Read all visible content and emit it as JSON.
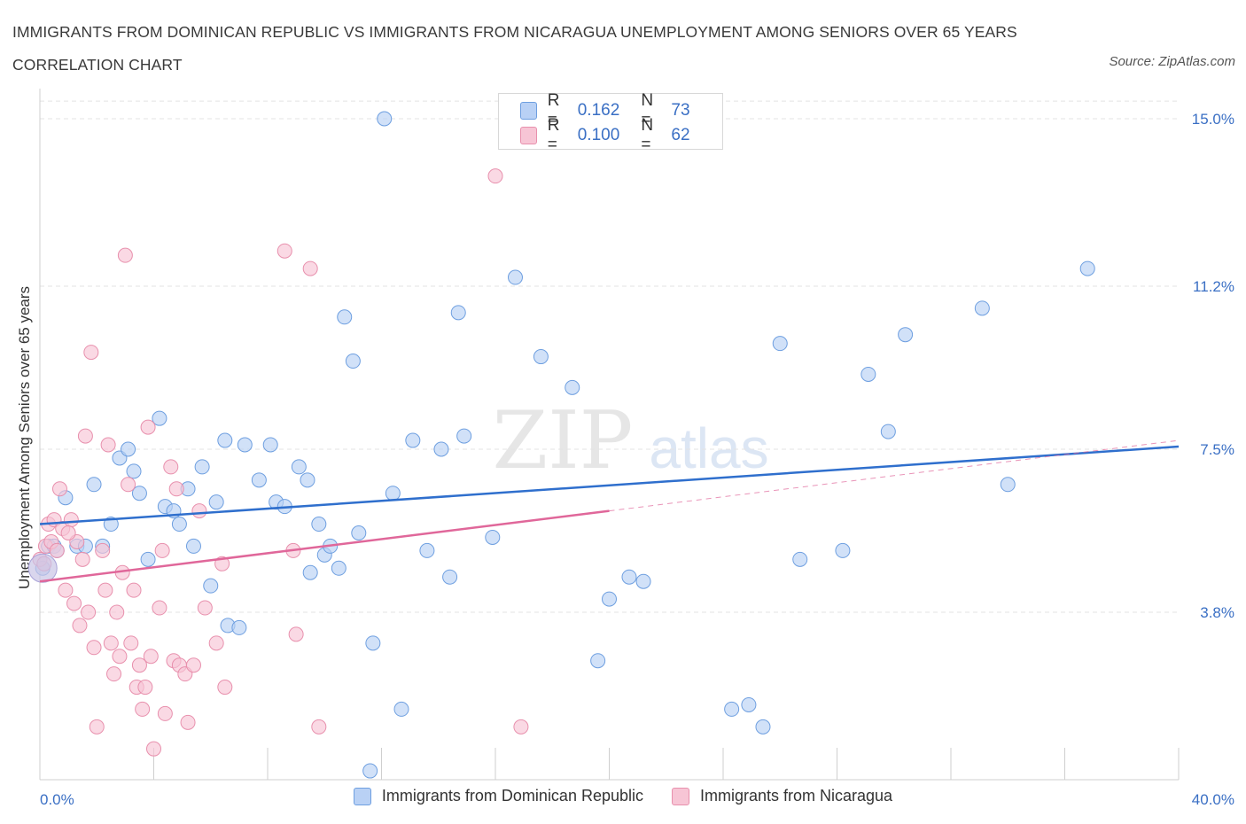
{
  "title": "IMMIGRANTS FROM DOMINICAN REPUBLIC VS IMMIGRANTS FROM NICARAGUA UNEMPLOYMENT AMONG SENIORS OVER 65 YEARS CORRELATION CHART",
  "source": "Source: ZipAtlas.com",
  "watermark": {
    "zip": "ZIP",
    "atlas": "atlas"
  },
  "legend_top": [
    {
      "r_label": "R =",
      "r_value": "0.162",
      "n_label": "N =",
      "n_value": "73"
    },
    {
      "r_label": "R =",
      "r_value": "0.100",
      "n_label": "N =",
      "n_value": "62"
    }
  ],
  "colors": {
    "blue_fill": "#b9d1f5",
    "blue_stroke": "#6e9fe0",
    "blue_line": "#2f6fcd",
    "pink_fill": "#f7c5d5",
    "pink_stroke": "#e890ad",
    "pink_line": "#e0679a",
    "grid": "#e3e3e3",
    "tick_label": "#3a6fc4"
  },
  "chart_data": {
    "type": "scatter",
    "title": "IMMIGRANTS FROM DOMINICAN REPUBLIC VS IMMIGRANTS FROM NICARAGUA UNEMPLOYMENT AMONG SENIORS OVER 65 YEARS CORRELATION CHART",
    "xlabel": "",
    "ylabel": "Unemployment Among Seniors over 65 years",
    "xlim": [
      0,
      40
    ],
    "ylim": [
      0,
      15.4
    ],
    "x_tick_labels": [
      "0.0%",
      "40.0%"
    ],
    "y_ticks": [
      3.8,
      7.5,
      11.2,
      15.0
    ],
    "y_tick_labels": [
      "3.8%",
      "7.5%",
      "11.2%",
      "15.0%"
    ],
    "grid": true,
    "legend_position": "top-center",
    "series": [
      {
        "name": "Immigrants from Dominican Republic",
        "r": 0.162,
        "n": 73,
        "trend": {
          "x0": 0,
          "y0": 5.8,
          "x1": 40,
          "y1": 7.56
        },
        "points": [
          [
            0.3,
            5.3
          ],
          [
            0.5,
            5.3
          ],
          [
            0.6,
            5.2
          ],
          [
            0.9,
            6.4
          ],
          [
            1.3,
            5.3
          ],
          [
            1.6,
            5.3
          ],
          [
            1.9,
            6.7
          ],
          [
            2.2,
            5.3
          ],
          [
            2.5,
            5.8
          ],
          [
            2.8,
            7.3
          ],
          [
            3.1,
            7.5
          ],
          [
            3.3,
            7.0
          ],
          [
            3.5,
            6.5
          ],
          [
            3.8,
            5.0
          ],
          [
            4.2,
            8.2
          ],
          [
            4.4,
            6.2
          ],
          [
            4.7,
            6.1
          ],
          [
            4.9,
            5.8
          ],
          [
            5.2,
            6.6
          ],
          [
            5.4,
            5.3
          ],
          [
            5.7,
            7.1
          ],
          [
            6.0,
            4.4
          ],
          [
            6.2,
            6.3
          ],
          [
            6.5,
            7.7
          ],
          [
            6.6,
            3.5
          ],
          [
            7.0,
            3.45
          ],
          [
            7.2,
            7.6
          ],
          [
            7.7,
            6.8
          ],
          [
            8.1,
            7.6
          ],
          [
            8.3,
            6.3
          ],
          [
            8.6,
            6.2
          ],
          [
            9.1,
            7.1
          ],
          [
            9.4,
            6.8
          ],
          [
            9.5,
            4.7
          ],
          [
            9.8,
            5.8
          ],
          [
            10.0,
            5.1
          ],
          [
            10.2,
            5.3
          ],
          [
            10.5,
            4.8
          ],
          [
            10.7,
            10.5
          ],
          [
            11.0,
            9.5
          ],
          [
            11.2,
            5.6
          ],
          [
            11.6,
            0.2
          ],
          [
            11.7,
            3.1
          ],
          [
            12.1,
            15.0
          ],
          [
            12.4,
            6.5
          ],
          [
            12.7,
            1.6
          ],
          [
            13.1,
            7.7
          ],
          [
            13.6,
            5.2
          ],
          [
            14.1,
            7.5
          ],
          [
            14.4,
            4.6
          ],
          [
            14.7,
            10.6
          ],
          [
            14.9,
            7.8
          ],
          [
            15.9,
            5.5
          ],
          [
            16.7,
            11.4
          ],
          [
            17.6,
            9.6
          ],
          [
            18.7,
            8.9
          ],
          [
            19.6,
            2.7
          ],
          [
            20.0,
            4.1
          ],
          [
            20.7,
            4.6
          ],
          [
            21.2,
            4.5
          ],
          [
            24.3,
            1.6
          ],
          [
            24.9,
            1.7
          ],
          [
            25.4,
            1.2
          ],
          [
            26.0,
            9.9
          ],
          [
            26.7,
            5.0
          ],
          [
            28.2,
            5.2
          ],
          [
            29.1,
            9.2
          ],
          [
            29.8,
            7.9
          ],
          [
            30.4,
            10.1
          ],
          [
            33.1,
            10.7
          ],
          [
            34.0,
            6.7
          ],
          [
            36.8,
            11.6
          ],
          [
            0.1,
            4.8
          ]
        ]
      },
      {
        "name": "Immigrants from Nicaragua",
        "r": 0.1,
        "n": 62,
        "trend": {
          "x0": 0,
          "y0": 4.5,
          "x1": 20,
          "y1": 6.1
        },
        "trend_ext": {
          "x0": 20,
          "y0": 6.1,
          "x1": 40,
          "y1": 7.7
        },
        "points": [
          [
            0.2,
            5.3
          ],
          [
            0.3,
            5.8
          ],
          [
            0.4,
            5.4
          ],
          [
            0.5,
            5.9
          ],
          [
            0.6,
            5.2
          ],
          [
            0.7,
            6.6
          ],
          [
            0.8,
            5.7
          ],
          [
            0.9,
            4.3
          ],
          [
            1.1,
            5.9
          ],
          [
            1.2,
            4.0
          ],
          [
            1.3,
            5.4
          ],
          [
            1.4,
            3.5
          ],
          [
            1.5,
            5.0
          ],
          [
            1.6,
            7.8
          ],
          [
            1.7,
            3.8
          ],
          [
            1.8,
            9.7
          ],
          [
            1.9,
            3.0
          ],
          [
            2.0,
            1.2
          ],
          [
            2.2,
            5.2
          ],
          [
            2.3,
            4.3
          ],
          [
            2.4,
            7.6
          ],
          [
            2.5,
            3.1
          ],
          [
            2.6,
            2.4
          ],
          [
            2.7,
            3.8
          ],
          [
            2.8,
            2.8
          ],
          [
            2.9,
            4.7
          ],
          [
            3.0,
            11.9
          ],
          [
            3.1,
            6.7
          ],
          [
            3.2,
            3.1
          ],
          [
            3.3,
            4.3
          ],
          [
            3.4,
            2.1
          ],
          [
            3.5,
            2.6
          ],
          [
            3.6,
            1.6
          ],
          [
            3.7,
            2.1
          ],
          [
            3.8,
            8.0
          ],
          [
            3.9,
            2.8
          ],
          [
            4.0,
            0.7
          ],
          [
            4.2,
            3.9
          ],
          [
            4.3,
            5.2
          ],
          [
            4.4,
            1.5
          ],
          [
            4.6,
            7.1
          ],
          [
            4.7,
            2.7
          ],
          [
            4.8,
            6.6
          ],
          [
            4.9,
            2.6
          ],
          [
            5.1,
            2.4
          ],
          [
            5.2,
            1.3
          ],
          [
            5.4,
            2.6
          ],
          [
            5.6,
            6.1
          ],
          [
            5.8,
            3.9
          ],
          [
            6.2,
            3.1
          ],
          [
            6.4,
            4.9
          ],
          [
            6.5,
            2.1
          ],
          [
            8.6,
            12.0
          ],
          [
            8.9,
            5.2
          ],
          [
            9.0,
            3.3
          ],
          [
            9.5,
            11.6
          ],
          [
            9.8,
            1.2
          ],
          [
            16.0,
            13.7
          ],
          [
            16.9,
            1.2
          ],
          [
            0.0,
            5.0
          ],
          [
            0.15,
            4.9
          ],
          [
            1.0,
            5.6
          ]
        ]
      }
    ]
  },
  "legend_bottom": [
    {
      "label": "Immigrants from Dominican Republic"
    },
    {
      "label": "Immigrants from Nicaragua"
    }
  ]
}
